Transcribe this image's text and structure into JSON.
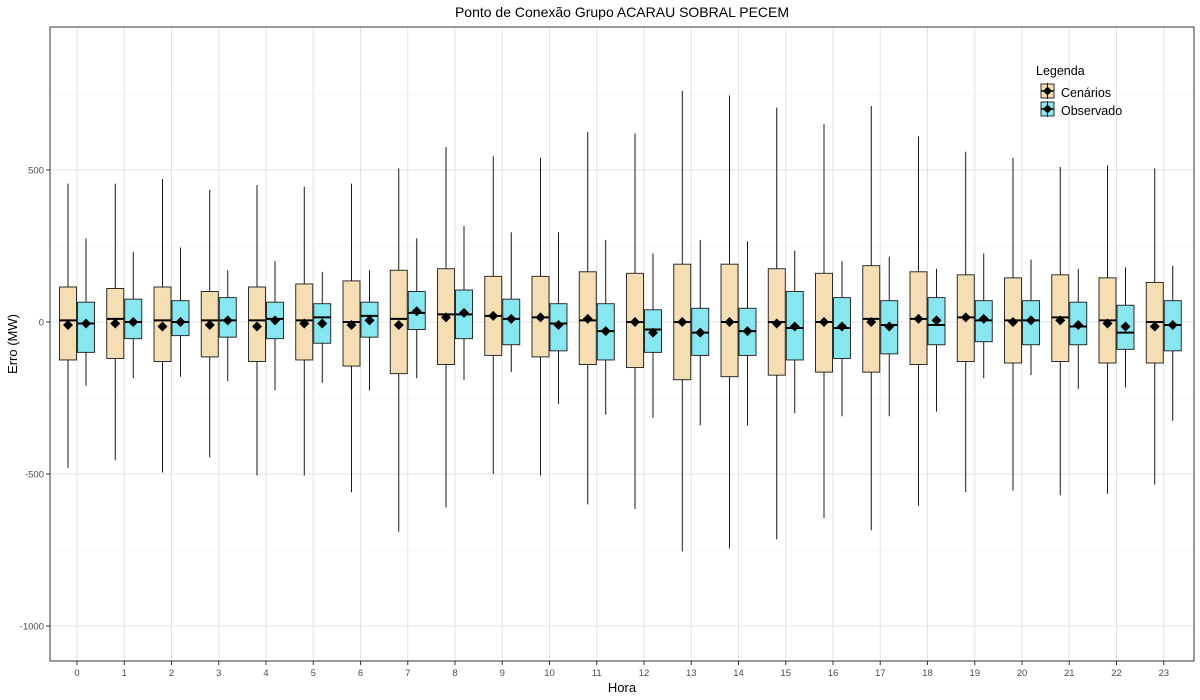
{
  "chart_data": {
    "type": "boxplot",
    "title": "Ponto de Conexão Grupo ACARAU SOBRAL PECEM",
    "xlabel": "Hora",
    "ylabel": "Erro (MW)",
    "ylim": [
      -1115,
      970
    ],
    "yticks": [
      500,
      0,
      -500,
      -1000
    ],
    "grid": true,
    "categories": [
      "0",
      "1",
      "2",
      "3",
      "4",
      "5",
      "6",
      "7",
      "8",
      "9",
      "10",
      "11",
      "12",
      "13",
      "14",
      "15",
      "16",
      "17",
      "18",
      "19",
      "20",
      "21",
      "22",
      "23"
    ],
    "legend": {
      "title": "Legenda",
      "placement": "top-right",
      "entries": [
        "Cenários",
        "Observado"
      ]
    },
    "colors": {
      "Cenários": "#f5deb3",
      "Observado": "#87e6f0"
    },
    "series": [
      {
        "name": "Cenários",
        "whisker_low": [
          -480,
          -455,
          -495,
          -445,
          -505,
          -505,
          -560,
          -690,
          -610,
          -500,
          -505,
          -600,
          -615,
          -755,
          -745,
          -715,
          -645,
          -685,
          -605,
          -560,
          -555,
          -570,
          -565,
          -535
        ],
        "q1": [
          -125,
          -120,
          -130,
          -115,
          -130,
          -125,
          -145,
          -170,
          -140,
          -110,
          -115,
          -140,
          -150,
          -190,
          -180,
          -175,
          -165,
          -165,
          -140,
          -130,
          -135,
          -130,
          -135,
          -135
        ],
        "median": [
          5,
          10,
          5,
          5,
          5,
          5,
          0,
          10,
          25,
          20,
          15,
          5,
          0,
          0,
          0,
          0,
          0,
          10,
          10,
          15,
          5,
          15,
          5,
          0
        ],
        "q3": [
          115,
          110,
          115,
          100,
          115,
          125,
          135,
          170,
          175,
          150,
          150,
          165,
          160,
          190,
          190,
          175,
          160,
          185,
          165,
          155,
          145,
          155,
          145,
          130
        ],
        "whisker_high": [
          455,
          455,
          470,
          435,
          450,
          445,
          455,
          505,
          575,
          545,
          540,
          625,
          620,
          760,
          745,
          705,
          650,
          710,
          610,
          560,
          540,
          510,
          515,
          505
        ],
        "mean": [
          -10,
          -5,
          -15,
          -10,
          -15,
          -5,
          -10,
          -10,
          15,
          20,
          15,
          10,
          0,
          0,
          0,
          -5,
          0,
          0,
          10,
          15,
          0,
          5,
          -5,
          -15
        ]
      },
      {
        "name": "Observado",
        "whisker_low": [
          -210,
          -185,
          -180,
          -195,
          -225,
          -200,
          -225,
          -185,
          -190,
          -165,
          -270,
          -305,
          -315,
          -340,
          -340,
          -300,
          -310,
          -310,
          -295,
          -185,
          -175,
          -220,
          -215,
          -325
        ],
        "q1": [
          -100,
          -55,
          -45,
          -50,
          -55,
          -70,
          -50,
          -25,
          -55,
          -75,
          -95,
          -125,
          -100,
          -110,
          -110,
          -125,
          -120,
          -105,
          -75,
          -65,
          -75,
          -75,
          -90,
          -95
        ],
        "median": [
          -5,
          0,
          0,
          5,
          10,
          15,
          20,
          30,
          25,
          10,
          -5,
          -30,
          -25,
          -35,
          -30,
          -20,
          -20,
          -10,
          -10,
          5,
          5,
          -15,
          -35,
          -10
        ],
        "q3": [
          65,
          75,
          70,
          80,
          65,
          60,
          65,
          100,
          105,
          75,
          60,
          60,
          40,
          45,
          45,
          100,
          80,
          70,
          80,
          70,
          70,
          65,
          55,
          70
        ],
        "whisker_high": [
          275,
          230,
          245,
          170,
          200,
          165,
          170,
          275,
          315,
          295,
          295,
          270,
          225,
          270,
          265,
          235,
          200,
          215,
          175,
          225,
          205,
          175,
          180,
          185
        ],
        "mean": [
          -5,
          0,
          0,
          5,
          5,
          -5,
          5,
          35,
          30,
          10,
          -10,
          -30,
          -35,
          -35,
          -30,
          -15,
          -15,
          -15,
          5,
          10,
          5,
          -10,
          -15,
          -10
        ]
      }
    ]
  }
}
